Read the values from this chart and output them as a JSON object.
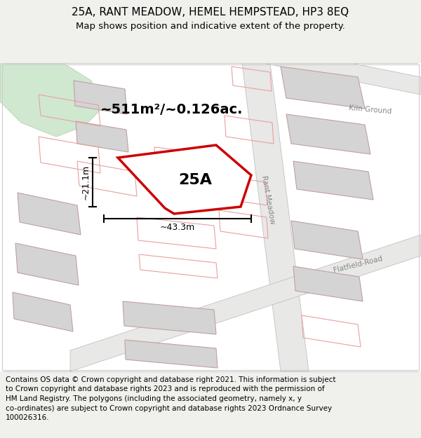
{
  "title_line1": "25A, RANT MEADOW, HEMEL HEMPSTEAD, HP3 8EQ",
  "title_line2": "Map shows position and indicative extent of the property.",
  "label_25A": "25A",
  "area_text": "~511m²/~0.126ac.",
  "dim_width": "~43.3m",
  "dim_height": "~21.1m",
  "road_rant_meadow": "Rant Meadow",
  "road_kiln_ground": "Kiln Ground",
  "road_flatfield": "Flatfield-Road",
  "footer_lines": [
    "Contains OS data © Crown copyright and database right 2021. This information is subject",
    "to Crown copyright and database rights 2023 and is reproduced with the permission of",
    "HM Land Registry. The polygons (including the associated geometry, namely x, y",
    "co-ordinates) are subject to Crown copyright and database rights 2023 Ordnance Survey",
    "100026316."
  ],
  "bg_color": "#f0f0ec",
  "map_bg": "#ffffff",
  "property_color": "#cc0000",
  "road_outline_color": "#e8a0a0",
  "building_fill": "#d4d4d4",
  "building_edge": "#c0a0a0",
  "green_color": "#d0e8d0",
  "road_fill": "#e8e8e6",
  "road_edge": "#b8b8b8",
  "title_fontsize": 11,
  "subtitle_fontsize": 9.5,
  "footer_fontsize": 7.5,
  "label_fontsize": 16,
  "area_fontsize": 14,
  "dim_fontsize": 9,
  "road_label_fontsize": 7.5
}
